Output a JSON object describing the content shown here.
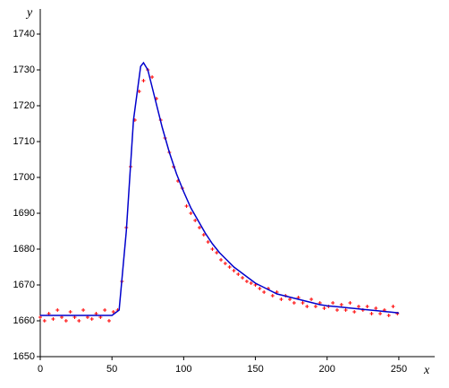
{
  "chart_data": {
    "type": "scatter",
    "x_label": "x",
    "y_label": "y",
    "xlim": [
      0,
      275
    ],
    "ylim": [
      1650,
      1747
    ],
    "xticks": [
      0,
      50,
      100,
      150,
      200,
      250
    ],
    "yticks": [
      1650,
      1660,
      1670,
      1680,
      1690,
      1700,
      1710,
      1720,
      1730,
      1740
    ],
    "series": [
      {
        "type": "scatter",
        "color": "#ff0000",
        "x": [
          0,
          3,
          6,
          9,
          12,
          15,
          18,
          21,
          24,
          27,
          30,
          33,
          36,
          39,
          42,
          45,
          48,
          51,
          54,
          57,
          60,
          63,
          66,
          69,
          72,
          75,
          78,
          81,
          84,
          87,
          90,
          93,
          96,
          99,
          102,
          105,
          108,
          111,
          114,
          117,
          120,
          123,
          126,
          129,
          132,
          135,
          138,
          141,
          144,
          147,
          150,
          153,
          156,
          159,
          162,
          165,
          168,
          171,
          174,
          177,
          180,
          183,
          186,
          189,
          192,
          195,
          198,
          201,
          204,
          207,
          210,
          213,
          216,
          219,
          222,
          225,
          228,
          231,
          234,
          237,
          240,
          243,
          246,
          249
        ],
        "values": [
          1661,
          1660,
          1662,
          1660.5,
          1663,
          1661,
          1660,
          1662.5,
          1661,
          1660,
          1663,
          1661,
          1660.5,
          1662,
          1661,
          1663,
          1660,
          1662.5,
          1663,
          1671,
          1686,
          1703,
          1716,
          1724,
          1727,
          1730,
          1728,
          1722,
          1716,
          1711,
          1707,
          1703,
          1699,
          1697,
          1692,
          1690,
          1688,
          1686,
          1684,
          1682,
          1680,
          1679,
          1677,
          1676,
          1675,
          1674,
          1673,
          1672,
          1671,
          1670.5,
          1670,
          1669,
          1668,
          1669,
          1667,
          1668,
          1666,
          1667,
          1666,
          1665,
          1666.5,
          1665,
          1664,
          1666,
          1664,
          1665,
          1663.5,
          1664,
          1665,
          1663,
          1664.5,
          1663,
          1665,
          1662.5,
          1664,
          1663,
          1664,
          1662,
          1663.5,
          1662,
          1663,
          1661.5,
          1664,
          1662
        ]
      },
      {
        "type": "line",
        "color": "#0000cc",
        "x": [
          0,
          5,
          10,
          15,
          20,
          25,
          30,
          35,
          40,
          45,
          50,
          55,
          60,
          65,
          70,
          72,
          75,
          80,
          85,
          90,
          95,
          100,
          105,
          110,
          115,
          120,
          125,
          130,
          135,
          140,
          145,
          150,
          155,
          160,
          165,
          170,
          175,
          180,
          185,
          190,
          195,
          200,
          205,
          210,
          215,
          220,
          225,
          230,
          235,
          240,
          245,
          250
        ],
        "values": [
          1661.5,
          1661.5,
          1661.5,
          1661.5,
          1661.5,
          1661.5,
          1661.5,
          1661.5,
          1661.5,
          1661.5,
          1661.5,
          1663,
          1685,
          1716,
          1731,
          1732,
          1730,
          1722,
          1714,
          1707,
          1701,
          1696,
          1691.5,
          1688,
          1684.5,
          1681.5,
          1679,
          1677,
          1675,
          1673.5,
          1672,
          1670.5,
          1669.5,
          1668.5,
          1667.5,
          1667,
          1666.5,
          1666,
          1665.5,
          1665,
          1664.5,
          1664.2,
          1664,
          1663.8,
          1663.6,
          1663.4,
          1663.2,
          1663,
          1662.8,
          1662.6,
          1662.4,
          1662.2
        ]
      }
    ]
  }
}
